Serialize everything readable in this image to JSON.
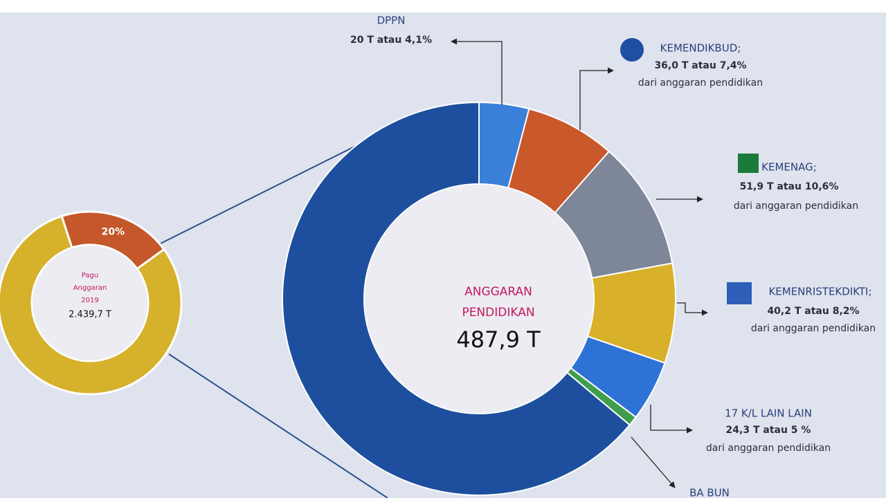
{
  "chart_data": [
    {
      "type": "donut",
      "center_title": [
        "Pagu",
        "Anggaran",
        "2019"
      ],
      "center_value": "2.439,7 T",
      "categories": [
        null,
        null
      ],
      "values": [
        80,
        20
      ],
      "value_labels": [
        null,
        "20%"
      ],
      "colors": [
        "#d6b12c",
        "#c4582a"
      ]
    },
    {
      "type": "donut",
      "center_title": [
        "ANGGARAN",
        "PENDIDIKAN"
      ],
      "center_value": "487,9 T",
      "categories": [
        "DPPN",
        "KEMENDIKBUD;",
        "KEMENAG;",
        "KEMENRISTEKDIKTI;",
        "17 K/L LAIN LAIN",
        "BA BUN",
        null
      ],
      "values": [
        4.1,
        7.4,
        10.6,
        8.2,
        5,
        0.8,
        63.9
      ],
      "value_labels": [
        "20 T atau 4,1%",
        "36,0 T atau 7,4%",
        "51,9 T atau 10,6%",
        "40,2 T atau 8,2%",
        "24,3  T atau 5 %",
        null,
        null
      ],
      "notes": [
        null,
        "dari anggaran pendidikan",
        "dari anggaran pendidikan",
        "dari anggaran pendidikan",
        "dari anggaran pendidikan",
        null,
        null
      ],
      "colors": [
        "#3a7fd8",
        "#c9582a",
        "#7d8799",
        "#d8b02a",
        "#2f72d6",
        "#3f9e4c",
        "#1d4f9e"
      ]
    }
  ]
}
